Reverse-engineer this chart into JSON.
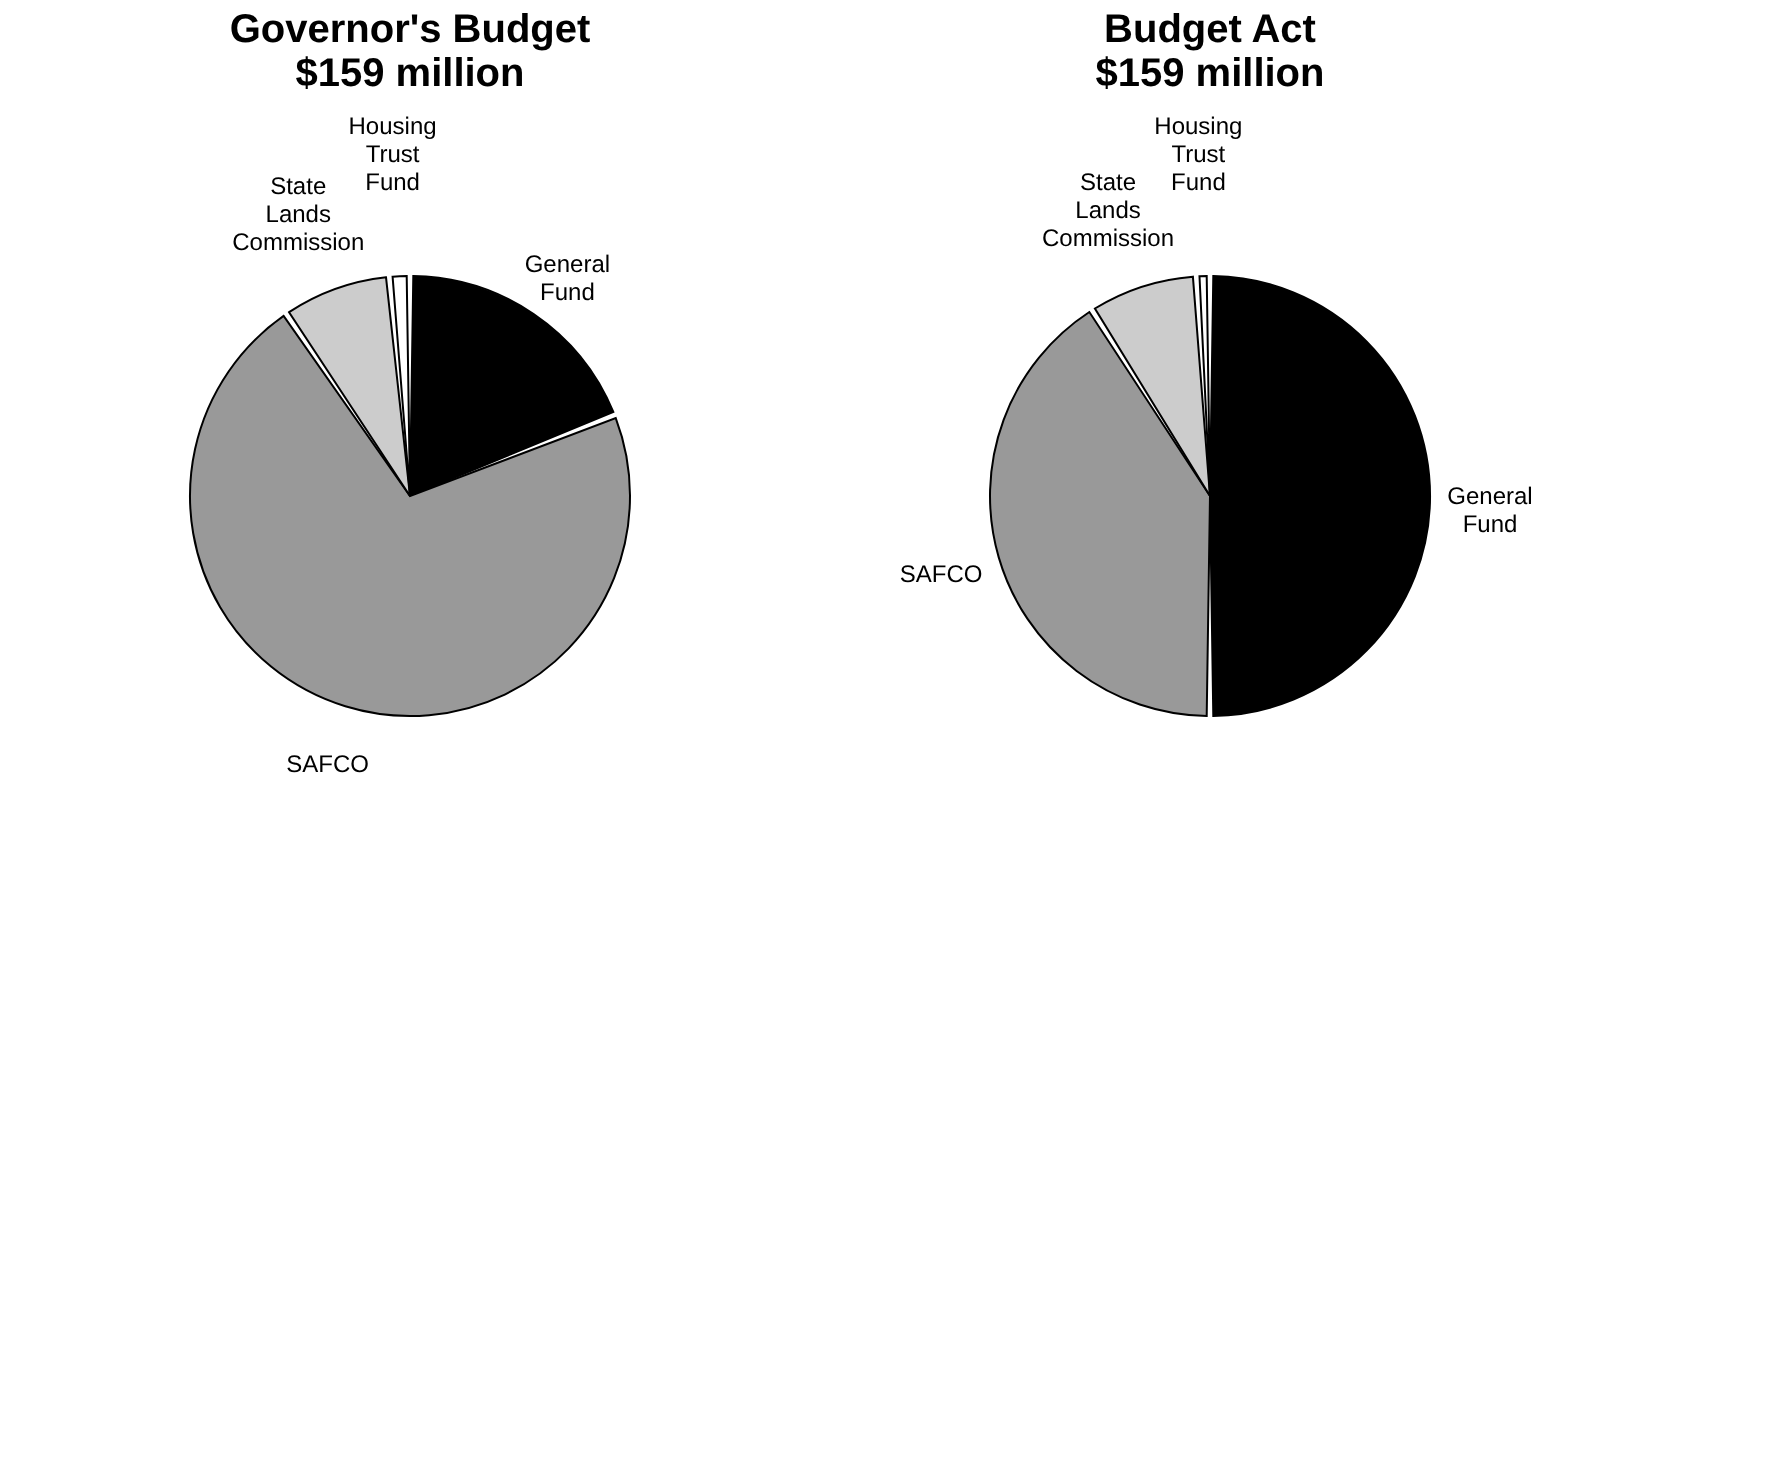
{
  "chart_data": [
    {
      "type": "pie",
      "title": [
        "Governor's Budget",
        "$159 million"
      ],
      "categories": [
        "General Fund",
        "SAFCO",
        "State Lands Commission",
        "Housing Trust Fund"
      ],
      "values": [
        19,
        71.5,
        8,
        1.5
      ],
      "colors": [
        "#000000",
        "#999999",
        "#cccccc",
        "#ffffff"
      ],
      "legend": false
    },
    {
      "type": "pie",
      "title": [
        "Budget Act",
        "$159 million"
      ],
      "categories": [
        "General Fund",
        "SAFCO",
        "State Lands Commission",
        "Housing Trust Fund"
      ],
      "values": [
        50,
        41,
        8,
        1
      ],
      "colors": [
        "#000000",
        "#999999",
        "#cccccc",
        "#ffffff"
      ],
      "legend": false
    }
  ]
}
